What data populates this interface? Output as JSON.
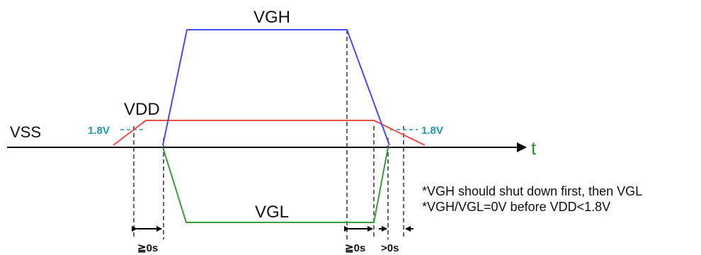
{
  "labels": {
    "vgh": "VGH",
    "vdd": "VDD",
    "vss": "VSS",
    "vgl": "VGL",
    "time_axis": "t",
    "threshold_left": "1.8V",
    "threshold_right": "1.8V"
  },
  "timing": {
    "t1": "≧0s",
    "t2": "≧0s",
    "t3": ">0s"
  },
  "notes": [
    "*VGH should shut down first, then VGL",
    "*VGH/VGL=0V before VDD<1.8V"
  ],
  "colors": {
    "vgh": "#4a4af0",
    "vdd": "#ee4a4a",
    "vgl": "#3c9a3c",
    "axis": "#000000",
    "threshold_text": "#1f9aa6",
    "time_axis_label": "#2e8b3a"
  }
}
